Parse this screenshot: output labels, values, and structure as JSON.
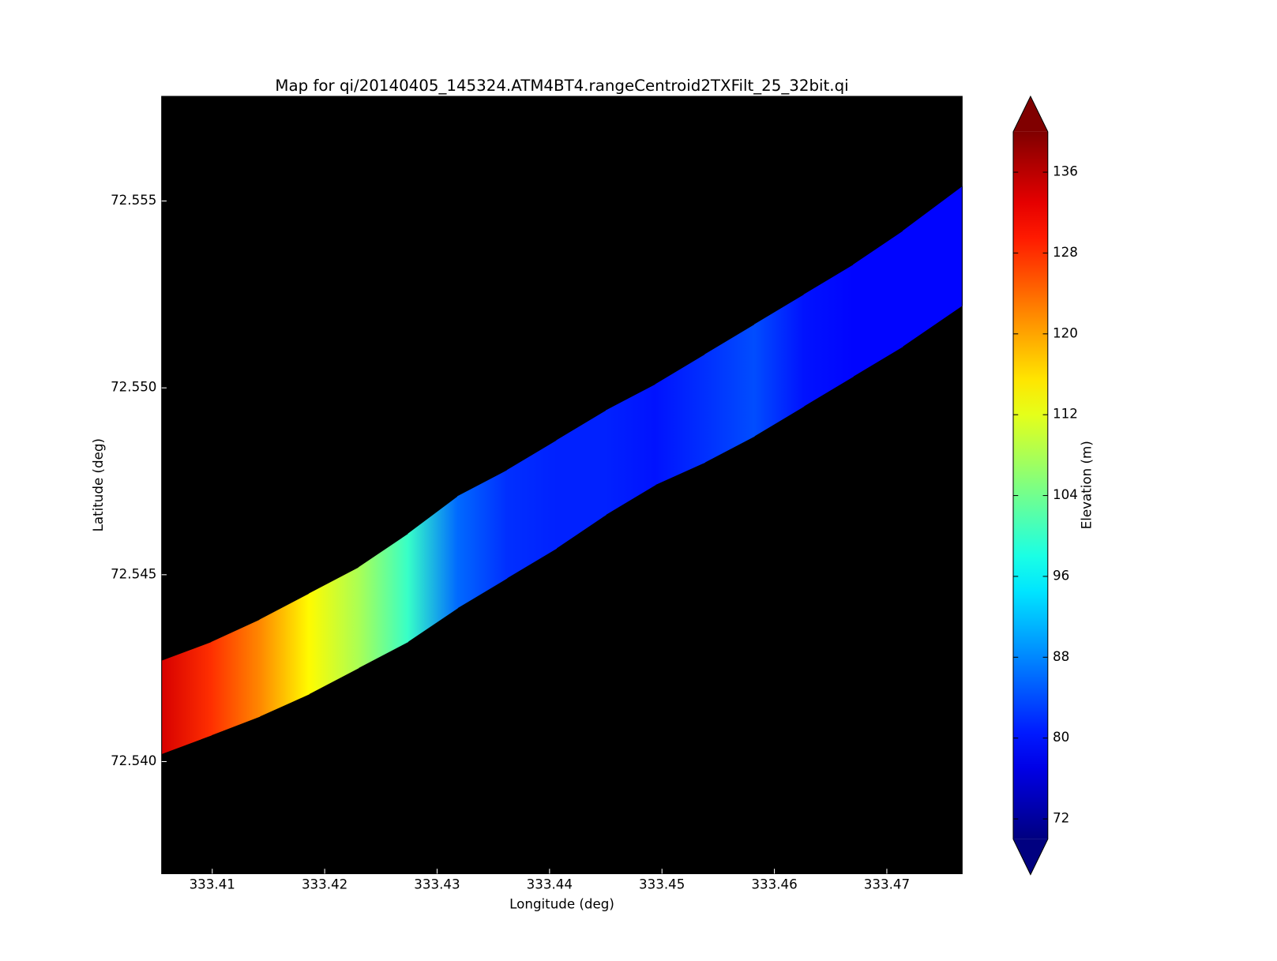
{
  "chart_data": {
    "type": "swath-map",
    "title": "Map for qi/20140405_145324.ATM4BT4.rangeCentroid2TXFilt_25_32bit.qi",
    "x_label": "Longitude (deg)",
    "y_label": "Latitude (deg)",
    "xlim": [
      333.4055,
      333.4767
    ],
    "ylim": [
      72.537,
      72.5578
    ],
    "xticks": [
      333.41,
      333.42,
      333.43,
      333.44,
      333.45,
      333.46,
      333.47
    ],
    "yticks": [
      {
        "value": 72.54,
        "label": "72.540"
      },
      {
        "value": 72.545,
        "label": "72.545"
      },
      {
        "value": 72.55,
        "label": "72.550"
      },
      {
        "value": 72.555,
        "label": "72.555"
      }
    ],
    "background": "#000000",
    "colormap": "jet",
    "swath": {
      "x": [
        333.4055,
        333.4099,
        333.4142,
        333.4186,
        333.423,
        333.4274,
        333.4318,
        333.4362,
        333.4406,
        333.445,
        333.4494,
        333.4538,
        333.4582,
        333.4626,
        333.467,
        333.4714,
        333.4767
      ],
      "upper": [
        72.5427,
        72.5432,
        72.5438,
        72.5445,
        72.5452,
        72.5461,
        72.5471,
        72.5478,
        72.5486,
        72.5494,
        72.5501,
        72.5509,
        72.5517,
        72.5525,
        72.5533,
        72.5542,
        72.5554
      ],
      "lower": [
        72.5402,
        72.5407,
        72.5412,
        72.5418,
        72.5425,
        72.5432,
        72.5441,
        72.5449,
        72.5457,
        72.5466,
        72.5474,
        72.548,
        72.5487,
        72.5495,
        72.5503,
        72.5511,
        72.5522
      ],
      "values": [
        134,
        128,
        122,
        114,
        108,
        100,
        86,
        82,
        81,
        81,
        80,
        82,
        84,
        80,
        79,
        79,
        79
      ]
    },
    "colorbar": {
      "label": "Elevation (m)",
      "clim": [
        70,
        140
      ],
      "ticks": [
        72,
        80,
        88,
        96,
        104,
        112,
        120,
        128,
        136
      ],
      "extend": "both"
    }
  }
}
